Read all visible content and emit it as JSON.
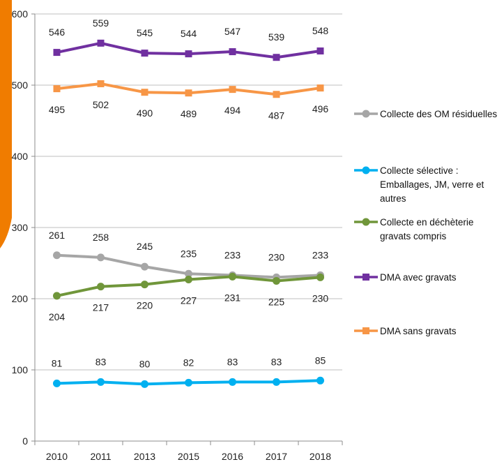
{
  "chart_data": {
    "type": "line",
    "title": "",
    "xlabel": "",
    "ylabel": "",
    "ylim": [
      0,
      600
    ],
    "yticks": [
      0,
      100,
      200,
      300,
      400,
      500,
      600
    ],
    "grid": true,
    "legend_position": "right",
    "categories": [
      "2010",
      "2011",
      "2013",
      "2015",
      "2016",
      "2017",
      "2018"
    ],
    "series": [
      {
        "name": "Collecte des OM résiduelles",
        "name_lines": [
          "Collecte des OM résiduelles"
        ],
        "color": "#a6a6a6",
        "marker": "circle",
        "values": [
          261,
          258,
          245,
          235,
          233,
          230,
          233
        ],
        "label_position": "above"
      },
      {
        "name": "Collecte sélective : Emballages, JM, verre et autres",
        "name_lines": [
          "Collecte sélective :",
          "Emballages, JM, verre et",
          "autres"
        ],
        "color": "#00b0f0",
        "marker": "circle",
        "values": [
          81,
          83,
          80,
          82,
          83,
          83,
          85
        ],
        "label_position": "above"
      },
      {
        "name": "Collecte en déchèterie gravats compris",
        "name_lines": [
          "Collecte en déchèterie",
          "gravats compris"
        ],
        "color": "#70963a",
        "marker": "circle",
        "values": [
          204,
          217,
          220,
          227,
          231,
          225,
          230
        ],
        "label_position": "below"
      },
      {
        "name": "DMA avec gravats",
        "name_lines": [
          "DMA avec gravats"
        ],
        "color": "#7030a0",
        "marker": "square",
        "values": [
          546,
          559,
          545,
          544,
          547,
          539,
          548
        ],
        "label_position": "above"
      },
      {
        "name": "DMA sans gravats",
        "name_lines": [
          "DMA sans gravats"
        ],
        "color": "#f79646",
        "marker": "square",
        "values": [
          495,
          502,
          490,
          489,
          494,
          487,
          496
        ],
        "label_position": "below"
      }
    ]
  },
  "decoration": {
    "accent_color": "#f07c00",
    "grid_color": "#bfbfbf",
    "axis_color": "#8c8c8c"
  }
}
